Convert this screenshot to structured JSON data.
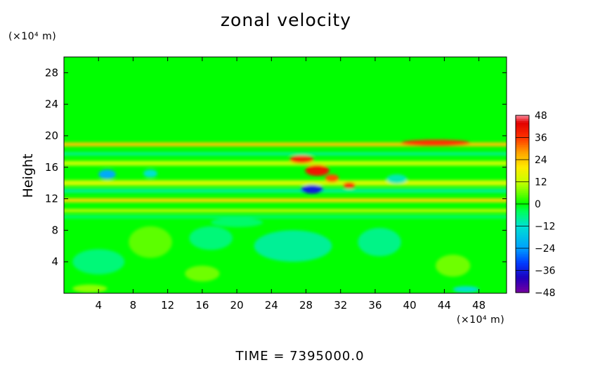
{
  "chart_data": {
    "type": "heatmap",
    "title": "zonal velocity",
    "ylabel": "Height",
    "xlabel": "",
    "x_unit": "(×10⁴ m)",
    "y_unit": "(×10⁴ m)",
    "footer": "TIME = 7395000.0",
    "x_ticks": [
      4,
      8,
      12,
      16,
      20,
      24,
      28,
      32,
      36,
      40,
      44,
      48
    ],
    "y_ticks": [
      4,
      8,
      12,
      16,
      20,
      24,
      28
    ],
    "xlim": [
      0,
      51.2
    ],
    "ylim": [
      0,
      30
    ],
    "colorbar": {
      "min": -48,
      "max": 48,
      "ticks": [
        48,
        36,
        24,
        12,
        0,
        -12,
        -24,
        -36,
        -48
      ],
      "tick_labels": [
        "48",
        "36",
        "24",
        "12",
        "0",
        "−12",
        "−24",
        "−36",
        "−48"
      ]
    },
    "background_value": 0,
    "features": [
      {
        "kind": "band",
        "y": 18.9,
        "width": 0.5,
        "value": 24,
        "x_range": [
          0,
          51.2
        ]
      },
      {
        "kind": "band",
        "y": 17.7,
        "width": 0.4,
        "value": -8,
        "x_range": [
          0,
          51.2
        ]
      },
      {
        "kind": "band",
        "y": 16.5,
        "width": 0.6,
        "value": 12,
        "x_range": [
          0,
          51.2
        ]
      },
      {
        "kind": "band",
        "y": 14.0,
        "width": 0.7,
        "value": 14,
        "x_range": [
          0,
          51.2
        ]
      },
      {
        "kind": "band",
        "y": 13.0,
        "width": 0.5,
        "value": -8,
        "x_range": [
          0,
          51.2
        ]
      },
      {
        "kind": "band",
        "y": 11.8,
        "width": 0.5,
        "value": 22,
        "x_range": [
          0,
          51.2
        ]
      },
      {
        "kind": "band",
        "y": 10.5,
        "width": 0.35,
        "value": 16,
        "x_range": [
          0,
          51.2
        ]
      },
      {
        "kind": "band",
        "y": 9.7,
        "width": 0.35,
        "value": -6,
        "x_range": [
          0,
          51.2
        ]
      },
      {
        "kind": "blob",
        "x": 43,
        "y": 19.1,
        "rx": 4,
        "ry": 0.4,
        "value": 36
      },
      {
        "kind": "blob",
        "x": 27.5,
        "y": 17.0,
        "rx": 1.4,
        "ry": 0.5,
        "value": 38
      },
      {
        "kind": "blob",
        "x": 29.3,
        "y": 15.6,
        "rx": 1.4,
        "ry": 0.7,
        "value": 40
      },
      {
        "kind": "blob",
        "x": 31.0,
        "y": 14.6,
        "rx": 0.8,
        "ry": 0.5,
        "value": 34
      },
      {
        "kind": "blob",
        "x": 33.0,
        "y": 13.7,
        "rx": 0.7,
        "ry": 0.4,
        "value": 36
      },
      {
        "kind": "blob",
        "x": 28.7,
        "y": 13.2,
        "rx": 1.3,
        "ry": 0.55,
        "value": -36
      },
      {
        "kind": "blob",
        "x": 5.0,
        "y": 15.1,
        "rx": 1.0,
        "ry": 0.6,
        "value": -22
      },
      {
        "kind": "blob",
        "x": 10.0,
        "y": 15.2,
        "rx": 0.8,
        "ry": 0.5,
        "value": -12
      },
      {
        "kind": "blob",
        "x": 38.5,
        "y": 14.5,
        "rx": 1.2,
        "ry": 0.6,
        "value": -10
      },
      {
        "kind": "blob",
        "x": 26.5,
        "y": 6.0,
        "rx": 4.5,
        "ry": 2.0,
        "value": -8
      },
      {
        "kind": "blob",
        "x": 36.5,
        "y": 6.5,
        "rx": 2.5,
        "ry": 1.8,
        "value": -7
      },
      {
        "kind": "blob",
        "x": 17.0,
        "y": 7.0,
        "rx": 2.5,
        "ry": 1.5,
        "value": -6
      },
      {
        "kind": "blob",
        "x": 4.0,
        "y": 4.0,
        "rx": 3.0,
        "ry": 1.6,
        "value": -6
      },
      {
        "kind": "blob",
        "x": 45.0,
        "y": 3.5,
        "rx": 2.0,
        "ry": 1.4,
        "value": 6
      },
      {
        "kind": "blob",
        "x": 10.0,
        "y": 6.5,
        "rx": 2.5,
        "ry": 2.0,
        "value": 5
      },
      {
        "kind": "blob",
        "x": 20.0,
        "y": 9.0,
        "rx": 3.0,
        "ry": 0.6,
        "value": -5
      },
      {
        "kind": "blob",
        "x": 3.0,
        "y": 0.6,
        "rx": 2.0,
        "ry": 0.5,
        "value": 8
      },
      {
        "kind": "blob",
        "x": 16.0,
        "y": 2.5,
        "rx": 2.0,
        "ry": 1.0,
        "value": 6
      },
      {
        "kind": "blob",
        "x": 46.5,
        "y": 0.5,
        "rx": 1.5,
        "ry": 0.4,
        "value": -12
      }
    ]
  }
}
